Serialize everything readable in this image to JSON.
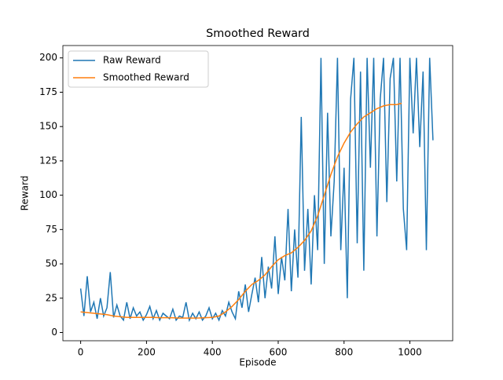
{
  "chart_data": {
    "type": "line",
    "title": "Smoothed Reward",
    "x_label": "Episode",
    "y_label": "Reward",
    "xlim": [
      -54,
      1130
    ],
    "ylim": [
      -6,
      209
    ],
    "xticks": [
      0,
      200,
      400,
      600,
      800,
      1000
    ],
    "yticks": [
      0,
      25,
      50,
      75,
      100,
      125,
      150,
      175,
      200
    ],
    "legend": "upper left",
    "series": [
      {
        "name": "Raw Reward",
        "color": "#1f77b4",
        "x": [
          0,
          10,
          20,
          30,
          40,
          50,
          60,
          70,
          80,
          90,
          100,
          110,
          120,
          130,
          140,
          150,
          160,
          170,
          180,
          190,
          200,
          210,
          220,
          230,
          240,
          250,
          260,
          270,
          280,
          290,
          300,
          310,
          320,
          330,
          340,
          350,
          360,
          370,
          380,
          390,
          400,
          410,
          420,
          430,
          440,
          450,
          460,
          470,
          480,
          490,
          500,
          510,
          520,
          530,
          540,
          550,
          560,
          570,
          580,
          590,
          600,
          610,
          620,
          630,
          640,
          650,
          660,
          670,
          680,
          690,
          700,
          710,
          720,
          730,
          740,
          750,
          760,
          770,
          780,
          790,
          800,
          810,
          820,
          830,
          840,
          850,
          860,
          870,
          880,
          890,
          900,
          910,
          920,
          930,
          940,
          950,
          960,
          970,
          980,
          990,
          1000,
          1010,
          1020,
          1030,
          1040,
          1050,
          1060,
          1070
        ],
        "values": [
          32,
          12,
          41,
          15,
          22,
          10,
          25,
          12,
          18,
          44,
          11,
          20,
          12,
          9,
          22,
          10,
          18,
          12,
          15,
          9,
          13,
          19,
          10,
          16,
          9,
          14,
          12,
          10,
          17,
          9,
          12,
          11,
          22,
          9,
          14,
          10,
          15,
          9,
          12,
          18,
          10,
          14,
          9,
          16,
          12,
          22,
          15,
          10,
          30,
          18,
          35,
          15,
          28,
          40,
          22,
          55,
          25,
          48,
          32,
          70,
          28,
          55,
          38,
          90,
          30,
          75,
          40,
          157,
          45,
          90,
          35,
          100,
          60,
          200,
          50,
          160,
          70,
          110,
          200,
          60,
          120,
          25,
          170,
          200,
          65,
          190,
          45,
          200,
          120,
          200,
          70,
          170,
          200,
          95,
          185,
          200,
          110,
          200,
          90,
          60,
          200,
          145,
          200,
          135,
          190,
          60,
          200,
          140
        ]
      },
      {
        "name": "Smoothed Reward",
        "color": "#ff7f0e",
        "x": [
          0,
          20,
          40,
          60,
          80,
          100,
          120,
          140,
          160,
          180,
          200,
          220,
          240,
          260,
          280,
          300,
          320,
          340,
          360,
          380,
          400,
          420,
          440,
          460,
          480,
          500,
          520,
          540,
          560,
          580,
          600,
          620,
          640,
          660,
          680,
          700,
          720,
          740,
          760,
          780,
          800,
          820,
          840,
          860,
          880,
          900,
          920,
          940,
          960,
          975
        ],
        "values": [
          15,
          14.5,
          14,
          13.5,
          13,
          12,
          11.5,
          11,
          11,
          11,
          11,
          11,
          10.8,
          10.8,
          10.7,
          10.5,
          10.5,
          10.5,
          10.6,
          10.8,
          11,
          12,
          15,
          19,
          24,
          30,
          35,
          38,
          42,
          48,
          53,
          56,
          58,
          62,
          67,
          74,
          85,
          100,
          115,
          128,
          138,
          146,
          152,
          157,
          160,
          163,
          165,
          166,
          166,
          167
        ]
      }
    ]
  }
}
